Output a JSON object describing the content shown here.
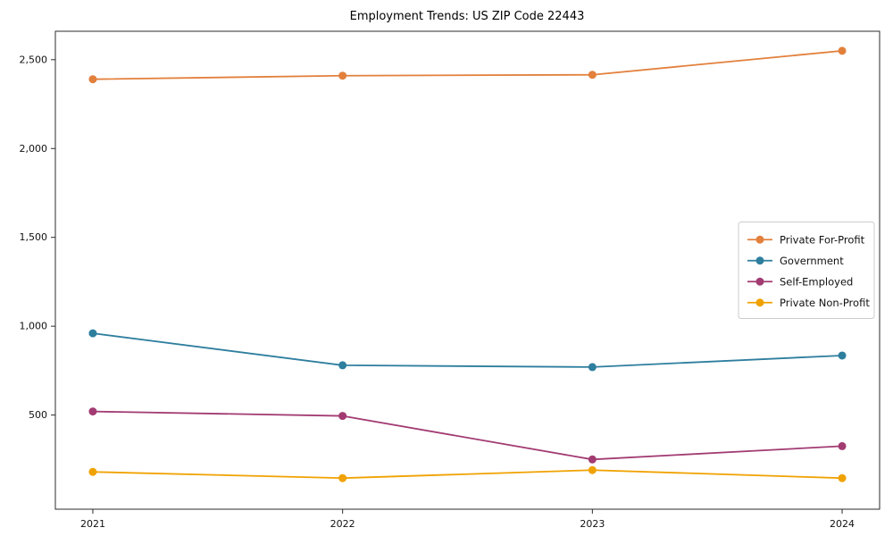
{
  "chart_data": {
    "type": "line",
    "title": "Employment Trends: US ZIP Code 22443",
    "x": [
      2021,
      2022,
      2023,
      2024
    ],
    "x_tick_labels": [
      "2021",
      "2022",
      "2023",
      "2024"
    ],
    "series": [
      {
        "name": "Private For-Profit",
        "color": "#E2803C",
        "values": [
          2390,
          2410,
          2415,
          2550
        ]
      },
      {
        "name": "Government",
        "color": "#2E7E9E",
        "values": [
          960,
          780,
          770,
          835
        ]
      },
      {
        "name": "Self-Employed",
        "color": "#A23B72",
        "values": [
          520,
          495,
          250,
          325
        ]
      },
      {
        "name": "Private Non-Profit",
        "color": "#F0A202",
        "values": [
          180,
          145,
          190,
          145
        ]
      }
    ],
    "yticks": [
      500,
      1000,
      1500,
      2000,
      2500
    ],
    "ylim": [
      -30,
      2660
    ],
    "xlabel": "",
    "ylabel": "",
    "grid": false,
    "legend_position": "center right",
    "marker": "o",
    "line_width": 1.8,
    "marker_radius": 4.5,
    "axes_color": "#2b2b2b",
    "legend_border_color": "#cccccc",
    "legend_background": "#ffffff"
  }
}
